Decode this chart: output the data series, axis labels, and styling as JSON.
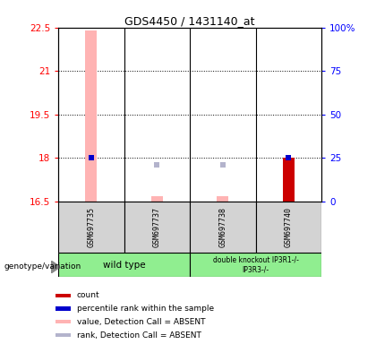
{
  "title": "GDS4450 / 1431140_at",
  "samples": [
    "GSM697735",
    "GSM697737",
    "GSM697738",
    "GSM697740"
  ],
  "group_labels": [
    "wild type",
    "double knockout IP3R1-/-\nIP3R3-/-"
  ],
  "ylim": [
    16.5,
    22.5
  ],
  "yticks": [
    16.5,
    18,
    19.5,
    21,
    22.5
  ],
  "ytick_labels": [
    "16.5",
    "18",
    "19.5",
    "21",
    "22.5"
  ],
  "y2lim": [
    0,
    100
  ],
  "y2ticks": [
    0,
    25,
    50,
    75,
    100
  ],
  "y2tick_labels": [
    "0",
    "25",
    "50",
    "75",
    "100%"
  ],
  "value_absent_color": "#ffb3b3",
  "rank_absent_color": "#b3b3cc",
  "count_color": "#cc0000",
  "rank_color": "#0000cc",
  "absent_values": [
    22.4,
    16.68,
    16.68,
    null
  ],
  "absent_ranks": [
    null,
    17.77,
    17.77,
    null
  ],
  "present_ranks_blue": [
    18.0,
    null,
    null,
    18.0
  ],
  "count_top": [
    null,
    null,
    null,
    18.0
  ],
  "dotted_lines": [
    18,
    19.5,
    21
  ],
  "bg_color": "#d3d3d3",
  "green_color": "#90ee90",
  "legend_items": [
    {
      "color": "#cc0000",
      "label": "count"
    },
    {
      "color": "#0000cc",
      "label": "percentile rank within the sample"
    },
    {
      "color": "#ffb3b3",
      "label": "value, Detection Call = ABSENT"
    },
    {
      "color": "#b3b3cc",
      "label": "rank, Detection Call = ABSENT"
    }
  ]
}
